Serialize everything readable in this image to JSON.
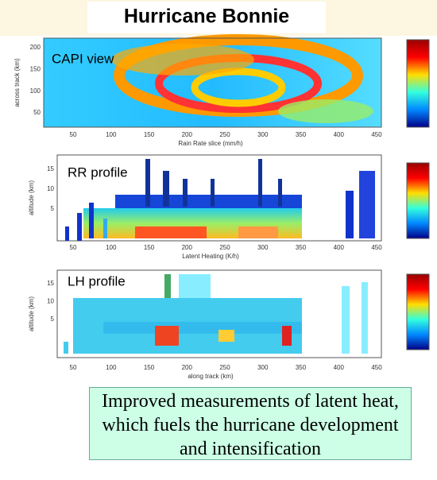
{
  "title": "Hurricane Bonnie",
  "panels": [
    {
      "label": "CAPI view",
      "y_axis_label": "across track (km)",
      "x_axis_label": "Rain Rate slice (mm/h)",
      "yticks": [
        200,
        150,
        100,
        50
      ],
      "xticks": [
        50,
        100,
        150,
        200,
        250,
        300,
        350,
        400,
        450
      ]
    },
    {
      "label": "RR profile",
      "y_axis_label": "altitude (km)",
      "x_axis_label": "Latent Heating (K/h)",
      "yticks": [
        15,
        10,
        5
      ],
      "xticks": [
        50,
        100,
        150,
        200,
        250,
        300,
        350,
        400,
        450
      ]
    },
    {
      "label": "LH profile",
      "y_axis_label": "altitude (km)",
      "x_axis_label": "along track (km)",
      "yticks": [
        15,
        10,
        5
      ],
      "xticks": [
        50,
        100,
        150,
        200,
        250,
        300,
        350,
        400,
        450
      ]
    }
  ],
  "caption": "Improved measurements of latent heat, which fuels the hurricane development and intensification"
}
